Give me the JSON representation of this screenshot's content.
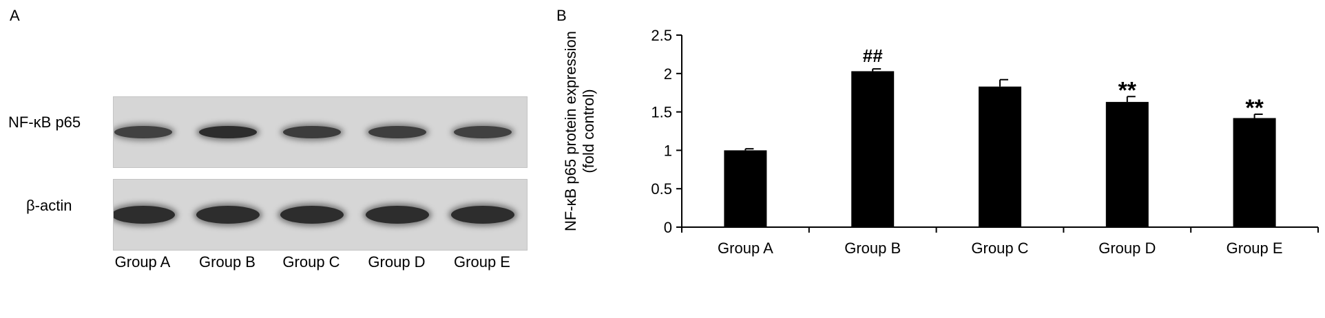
{
  "panels": {
    "a_letter": "A",
    "b_letter": "B"
  },
  "blot": {
    "row_labels": [
      "NF-κB p65",
      "β-actin"
    ],
    "lanes": [
      "Group A",
      "Group B",
      "Group C",
      "Group D",
      "Group E"
    ],
    "p65_intensity": [
      0.72,
      0.95,
      0.78,
      0.76,
      0.72
    ],
    "actin_intensity": [
      0.95,
      0.95,
      0.95,
      0.95,
      0.95
    ]
  },
  "chart_data": {
    "type": "bar",
    "categories": [
      "Group A",
      "Group B",
      "Group C",
      "Group D",
      "Group E"
    ],
    "values": [
      1.0,
      2.03,
      1.83,
      1.63,
      1.42
    ],
    "errors": [
      0.02,
      0.03,
      0.09,
      0.07,
      0.05
    ],
    "annotations": [
      "",
      "##",
      "",
      "**",
      "**"
    ],
    "ylabel_line1": "NF-κB p65 protein expression",
    "ylabel_line2": "(fold control)",
    "xlabel": "",
    "ylim": [
      0,
      2.5
    ],
    "yticks": [
      0,
      0.5,
      1,
      1.5,
      2,
      2.5
    ],
    "ytick_labels": [
      "0",
      "0.5",
      "1",
      "1.5",
      "2",
      "2.5"
    ],
    "bar_color": "#000000",
    "grid": false,
    "legend": "none"
  }
}
